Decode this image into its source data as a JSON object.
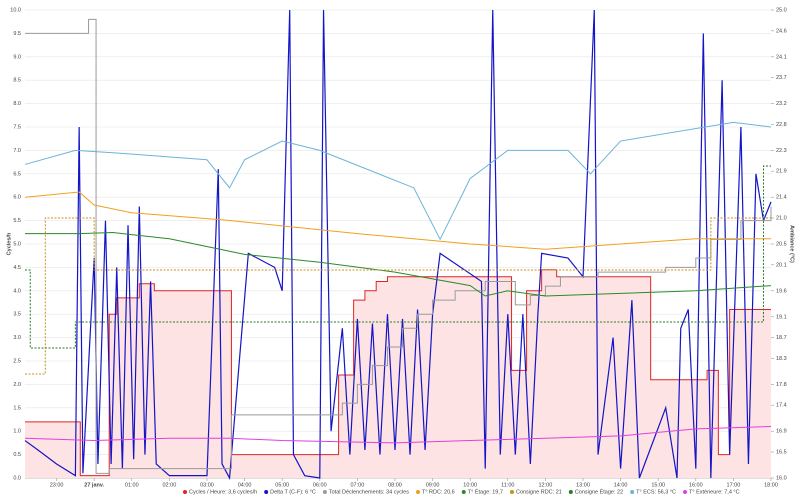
{
  "chart_data": {
    "type": "line",
    "y_label": "Cycles/h",
    "y2_label": "Ambiance (°C)",
    "xlim": [
      -1.84,
      18.0
    ],
    "xticks": [
      {
        "value": -1,
        "label": "23:00"
      },
      {
        "value": 0,
        "label": "27 janv."
      },
      {
        "value": 1,
        "label": "01:00"
      },
      {
        "value": 2,
        "label": "02:00"
      },
      {
        "value": 3,
        "label": "03:00"
      },
      {
        "value": 4,
        "label": "04:00"
      },
      {
        "value": 5,
        "label": "05:00"
      },
      {
        "value": 6,
        "label": "06:00"
      },
      {
        "value": 7,
        "label": "07:00"
      },
      {
        "value": 8,
        "label": "08:00"
      },
      {
        "value": 9,
        "label": "09:00"
      },
      {
        "value": 10,
        "label": "10:00"
      },
      {
        "value": 11,
        "label": "11:00"
      },
      {
        "value": 12,
        "label": "12:00"
      },
      {
        "value": 13,
        "label": "13:00"
      },
      {
        "value": 14,
        "label": "14:00"
      },
      {
        "value": 15,
        "label": "15:00"
      },
      {
        "value": 16,
        "label": "16:00"
      },
      {
        "value": 17,
        "label": "17:00"
      },
      {
        "value": 18,
        "label": "18:00"
      }
    ],
    "ylim": [
      0,
      10
    ],
    "yticks": [
      {
        "value": 0,
        "label": "0.0"
      },
      0.5,
      {
        "value": 1,
        "label": "1.0"
      },
      1.5,
      {
        "value": 2,
        "label": "2.0"
      },
      2.5,
      {
        "value": 3,
        "label": "3.0"
      },
      3.5,
      {
        "value": 4,
        "label": "4.0"
      },
      4.5,
      {
        "value": 5,
        "label": "5.0"
      },
      5.5,
      {
        "value": 6,
        "label": "6.0"
      },
      6.5,
      {
        "value": 7,
        "label": "7.0"
      },
      7.5,
      {
        "value": 8,
        "label": "8.0"
      },
      8.5,
      {
        "value": 9,
        "label": "9.0"
      },
      9.5,
      {
        "value": 10,
        "label": "10.0"
      }
    ],
    "y2lim": [
      16.0,
      25.0
    ],
    "y2ticks": [
      {
        "value": 16.0,
        "label": "16.0"
      },
      16.5,
      16.9,
      17.4,
      17.8,
      18.3,
      18.7,
      19.1,
      19.6,
      20.1,
      20.5,
      {
        "value": 21.0,
        "label": "21.0"
      },
      21.4,
      21.9,
      22.3,
      22.8,
      23.2,
      23.7,
      24.1,
      24.6,
      {
        "value": 25.0,
        "label": "25.0"
      }
    ],
    "grid": true,
    "series": [
      {
        "name": "Cycles / Heure: 3,6 cycles/h",
        "color": "#e02424",
        "fill": "#fde3e3",
        "step": true,
        "x": [
          -1.84,
          -0.37,
          0.4,
          0.6,
          1.2,
          1.6,
          3.65,
          6.5,
          6.9,
          7.2,
          7.5,
          7.8,
          11.1,
          11.5,
          11.9,
          12.3,
          14.8,
          16.3,
          16.6,
          16.9,
          18.0
        ],
        "values": [
          1.2,
          0.05,
          3.5,
          3.85,
          4.15,
          4.0,
          0.5,
          2.2,
          3.8,
          4.0,
          4.2,
          4.3,
          2.3,
          4.0,
          4.45,
          4.3,
          2.1,
          2.3,
          0.5,
          3.6,
          3.6
        ]
      },
      {
        "name": "Delta T (C-F): 6 °C",
        "color": "#1414c8",
        "x": [
          -1.84,
          -1.5,
          -1.0,
          -0.5,
          -0.4,
          -0.3,
          0.0,
          0.1,
          0.3,
          0.45,
          0.6,
          0.75,
          0.9,
          1.05,
          1.2,
          1.35,
          1.5,
          1.65,
          2.0,
          3.0,
          3.3,
          3.4,
          3.6,
          4.1,
          4.8,
          5.0,
          5.2,
          5.3,
          5.6,
          6.0,
          6.1,
          6.3,
          6.6,
          6.8,
          7.0,
          7.2,
          7.4,
          7.6,
          7.8,
          8.0,
          8.2,
          8.4,
          8.6,
          8.8,
          9.0,
          9.2,
          10.3,
          10.4,
          10.6,
          10.8,
          11.0,
          11.2,
          11.4,
          11.6,
          11.8,
          11.9,
          12.6,
          13.0,
          13.3,
          13.4,
          13.8,
          14.0,
          14.3,
          14.5,
          15.2,
          15.5,
          15.6,
          15.8,
          16.0,
          16.2,
          16.4,
          16.7,
          16.9,
          17.2,
          17.4,
          17.6,
          17.8,
          18.0
        ],
        "values": [
          0.8,
          0.6,
          0.3,
          0.05,
          7.5,
          0.1,
          4.7,
          0.3,
          5.5,
          0.3,
          4.5,
          0.2,
          5.4,
          0.4,
          5.8,
          0.5,
          4.2,
          0.3,
          0.05,
          0.05,
          6.6,
          0.3,
          0.0,
          4.8,
          4.5,
          4.0,
          10,
          0.5,
          0.05,
          0.0,
          10,
          1.0,
          3.2,
          0.5,
          3.4,
          0.6,
          3.3,
          0.5,
          3.5,
          0.6,
          3.4,
          0.5,
          3.6,
          0.6,
          3.5,
          4.8,
          4.2,
          0.2,
          10,
          0.5,
          3.5,
          0.5,
          3.5,
          0.3,
          3.5,
          4.8,
          4.7,
          4.3,
          10,
          0.5,
          3.0,
          0.2,
          3.8,
          0.0,
          1.5,
          0.0,
          3.2,
          3.6,
          0.2,
          9.5,
          0.0,
          8.5,
          0.5,
          7.5,
          0.3,
          6.5,
          5.5,
          5.9
        ]
      },
      {
        "name": "Total Déclenchements: 34 cycles",
        "color": "#9a9a9a",
        "step": true,
        "x": [
          -1.84,
          -0.15,
          0.05,
          0.4,
          3.65,
          6.6,
          7.0,
          7.4,
          7.8,
          8.2,
          8.6,
          9.0,
          9.6,
          10.4,
          11.2,
          11.6,
          12.0,
          12.4,
          13.4,
          15.2,
          16.0,
          16.4,
          17.2,
          18.0
        ],
        "values": [
          9.5,
          9.8,
          0.1,
          0.2,
          1.35,
          1.6,
          2.0,
          2.4,
          2.8,
          3.2,
          3.5,
          3.8,
          4.0,
          4.2,
          3.7,
          3.9,
          4.1,
          4.3,
          4.4,
          4.5,
          4.7,
          5.1,
          5.5,
          5.8
        ]
      },
      {
        "name": "T° RDC: 20,6",
        "color": "#f0a020",
        "axis": "y2",
        "x": [
          -1.84,
          -0.4,
          0.0,
          1.0,
          3.5,
          7.0,
          10.0,
          12.0,
          14.0,
          16.0,
          18.0
        ],
        "values": [
          21.4,
          21.5,
          21.25,
          21.1,
          20.96,
          20.7,
          20.5,
          20.4,
          20.5,
          20.6,
          20.6
        ]
      },
      {
        "name": "T° Étage: 19,7",
        "color": "#2a8a2a",
        "axis": "y2",
        "x": [
          -1.84,
          -0.4,
          0.5,
          2.0,
          4.0,
          6.0,
          8.0,
          10.0,
          10.4,
          11.0,
          12.0,
          14.0,
          16.0,
          18.0
        ],
        "values": [
          20.7,
          20.7,
          20.72,
          20.6,
          20.3,
          20.15,
          19.96,
          19.7,
          19.5,
          19.6,
          19.5,
          19.55,
          19.6,
          19.7
        ]
      },
      {
        "name": "Consigne RDC: 21",
        "color": "#c89020",
        "axis": "y2",
        "step": true,
        "dash": true,
        "x": [
          -1.84,
          -1.3,
          0.0,
          16.4,
          18.0
        ],
        "values": [
          18.0,
          21.0,
          20.0,
          21.0,
          21.0
        ]
      },
      {
        "name": "Consigne Étage: 22",
        "color": "#2a7a2a",
        "axis": "y2",
        "step": true,
        "dash": true,
        "x": [
          -1.84,
          -1.7,
          -0.5,
          17.8,
          18.0
        ],
        "values": [
          20.0,
          18.5,
          19.0,
          22.0,
          22.0
        ]
      },
      {
        "name": "T° ECS: 56,3 °C",
        "color": "#6ab4d8",
        "x": [
          -1.84,
          -0.5,
          0.5,
          3.0,
          3.6,
          4.0,
          5.0,
          6.0,
          8.5,
          9.2,
          10.0,
          11.0,
          12.6,
          13.2,
          14.0,
          17.0,
          18.0
        ],
        "values": [
          6.7,
          7.0,
          6.95,
          6.8,
          6.2,
          6.8,
          7.2,
          7.0,
          6.2,
          5.1,
          6.4,
          7.0,
          7.0,
          6.5,
          7.2,
          7.6,
          7.5
        ]
      },
      {
        "name": "T° Extérieure: 7,4 °C",
        "color": "#e040e0",
        "x": [
          -1.84,
          0,
          2,
          3.6,
          5,
          8,
          10,
          12,
          14,
          16,
          18
        ],
        "values": [
          0.85,
          0.8,
          0.85,
          0.85,
          0.8,
          0.75,
          0.8,
          0.85,
          0.9,
          1.05,
          1.1
        ]
      }
    ]
  }
}
